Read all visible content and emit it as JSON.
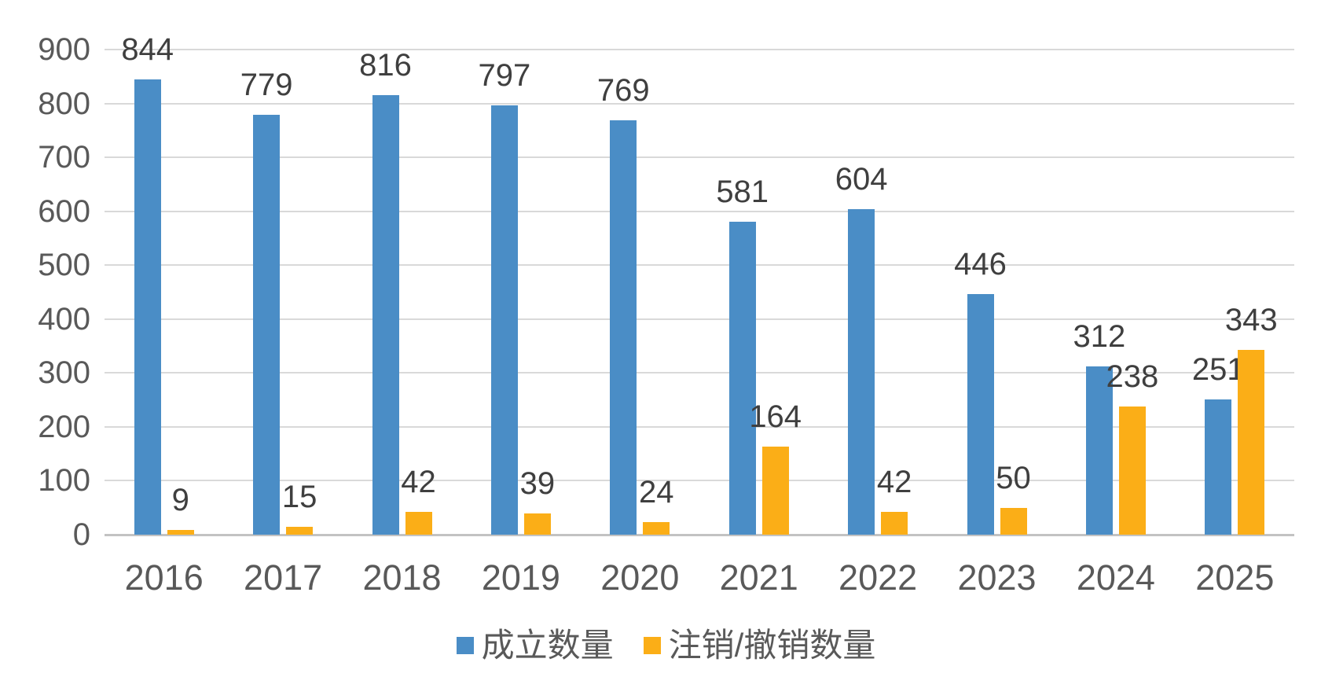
{
  "chart_data": {
    "type": "bar",
    "title": "",
    "xlabel": "",
    "ylabel": "",
    "categories": [
      "2016",
      "2017",
      "2018",
      "2019",
      "2020",
      "2021",
      "2022",
      "2023",
      "2024",
      "2025"
    ],
    "series": [
      {
        "key": "established",
        "name": "成立数量",
        "color": "#4A8DC6",
        "values": [
          844,
          779,
          816,
          797,
          769,
          581,
          604,
          446,
          312,
          251
        ]
      },
      {
        "key": "cancelled",
        "name": "注销/撤销数量",
        "color": "#FBAE17",
        "values": [
          9,
          15,
          42,
          39,
          24,
          164,
          42,
          50,
          238,
          343
        ]
      }
    ],
    "ylim": [
      0,
      900
    ],
    "yticks": [
      0,
      100,
      200,
      300,
      400,
      500,
      600,
      700,
      800,
      900
    ],
    "grid": true,
    "data_labels": true,
    "legend_position": "bottom"
  },
  "colors": {
    "grid_line": "#D9D9D9",
    "axis_line": "#C3C3C3",
    "axis_text": "#595959",
    "data_label_text": "#3F3F3F",
    "legend_text": "#595959",
    "background": "#FFFFFF"
  }
}
